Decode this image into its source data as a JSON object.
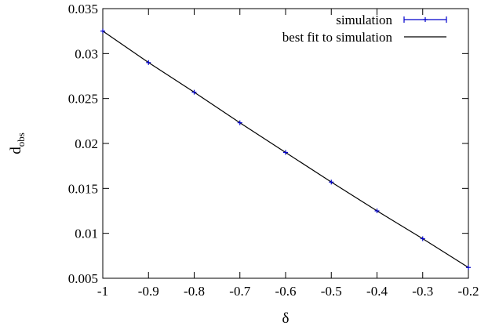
{
  "chart_data": {
    "type": "scatter",
    "xlabel": "δ",
    "ylabel": {
      "main": "d",
      "sub": "obs"
    },
    "xlim": [
      -1,
      -0.2
    ],
    "ylim": [
      0.005,
      0.035
    ],
    "x_ticks": [
      "-1",
      "-0.9",
      "-0.8",
      "-0.7",
      "-0.6",
      "-0.5",
      "-0.4",
      "-0.3",
      "-0.2"
    ],
    "y_ticks": [
      "0.005",
      "0.01",
      "0.015",
      "0.02",
      "0.025",
      "0.03",
      "0.035"
    ],
    "grid": false,
    "legend_position": "top-right",
    "series": [
      {
        "name": "simulation",
        "style": "points-with-errorbars",
        "color": "#0000cc",
        "x": [
          -1,
          -0.9,
          -0.8,
          -0.7,
          -0.6,
          -0.5,
          -0.4,
          -0.3,
          -0.2
        ],
        "y": [
          0.0325,
          0.029,
          0.0257,
          0.0223,
          0.019,
          0.0157,
          0.0125,
          0.0094,
          0.0062
        ]
      },
      {
        "name": "best fit to simulation",
        "style": "line",
        "color": "#000000",
        "x": [
          -1,
          -0.9,
          -0.8,
          -0.7,
          -0.6,
          -0.5,
          -0.4,
          -0.3,
          -0.2
        ],
        "y": [
          0.0325,
          0.029,
          0.0257,
          0.0223,
          0.019,
          0.0157,
          0.0125,
          0.0094,
          0.0062
        ]
      }
    ]
  }
}
